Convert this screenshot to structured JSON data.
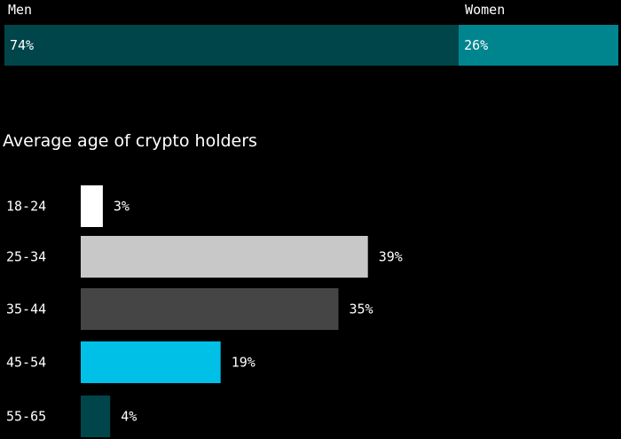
{
  "chart_data": [
    {
      "type": "bar",
      "orientation": "horizontal-stacked",
      "categories": [
        "Men",
        "Women"
      ],
      "values": [
        74,
        26
      ],
      "value_labels": [
        "74%",
        "26%"
      ],
      "colors": [
        "#00454a",
        "#00858f"
      ]
    },
    {
      "type": "bar",
      "orientation": "horizontal",
      "title": "Average age of crypto holders",
      "categories": [
        "18-24",
        "25-34",
        "35-44",
        "45-54",
        "55-65"
      ],
      "values": [
        3,
        39,
        35,
        19,
        4
      ],
      "value_labels": [
        "3%",
        "39%",
        "35%",
        "19%",
        "4%"
      ],
      "colors": [
        "#ffffff",
        "#c8c8c8",
        "#454545",
        "#00c0e8",
        "#00454a"
      ]
    }
  ]
}
